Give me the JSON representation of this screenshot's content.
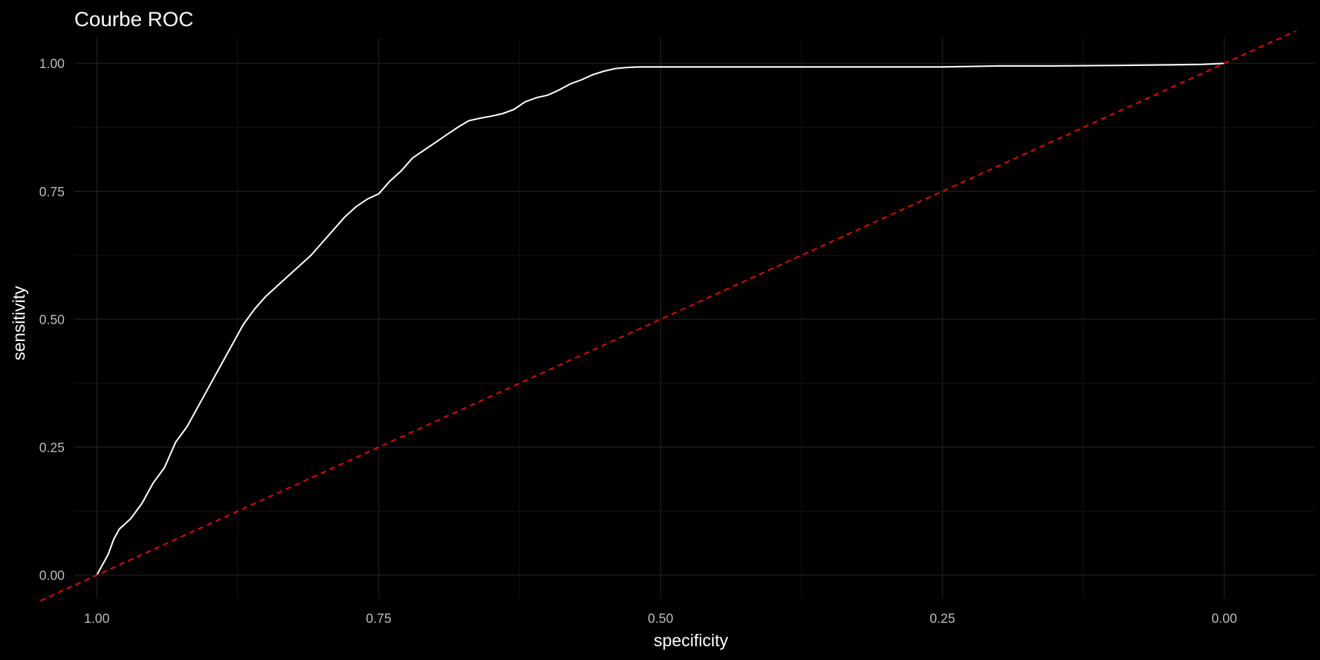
{
  "chart_data": {
    "type": "line",
    "title": "Courbe ROC",
    "xlabel": "specificity",
    "ylabel": "sensitivity",
    "x_reversed": true,
    "xlim": [
      1.02,
      -0.08
    ],
    "ylim": [
      -0.045,
      1.05
    ],
    "x_ticks": [
      1.0,
      0.75,
      0.5,
      0.25,
      0.0
    ],
    "x_tick_labels": [
      "1.00",
      "0.75",
      "0.50",
      "0.25",
      "0.00"
    ],
    "y_ticks": [
      0.0,
      0.25,
      0.5,
      0.75,
      1.0
    ],
    "y_tick_labels": [
      "0.00",
      "0.25",
      "0.50",
      "0.75",
      "1.00"
    ],
    "grid": true,
    "colors": {
      "background": "#000000",
      "grid_major": "#1f1f1f",
      "grid_minor": "#141414",
      "curve": "#ffffff",
      "reference": "#ff0000",
      "tick_text": "#bdbdbd",
      "title_text": "#ffffff"
    },
    "series": [
      {
        "style": "solid",
        "color": "#ffffff",
        "x": [
          1.0,
          0.995,
          0.99,
          0.985,
          0.98,
          0.975,
          0.97,
          0.96,
          0.95,
          0.94,
          0.93,
          0.92,
          0.91,
          0.9,
          0.89,
          0.88,
          0.87,
          0.86,
          0.85,
          0.84,
          0.83,
          0.82,
          0.81,
          0.8,
          0.79,
          0.78,
          0.77,
          0.76,
          0.75,
          0.74,
          0.73,
          0.72,
          0.71,
          0.7,
          0.69,
          0.68,
          0.67,
          0.66,
          0.65,
          0.64,
          0.63,
          0.62,
          0.61,
          0.6,
          0.59,
          0.58,
          0.57,
          0.56,
          0.55,
          0.54,
          0.53,
          0.52,
          0.5,
          0.45,
          0.4,
          0.35,
          0.3,
          0.25,
          0.2,
          0.15,
          0.1,
          0.05,
          0.02,
          0.0
        ],
        "y": [
          0.0,
          0.02,
          0.04,
          0.07,
          0.09,
          0.1,
          0.11,
          0.14,
          0.18,
          0.21,
          0.26,
          0.29,
          0.33,
          0.37,
          0.41,
          0.45,
          0.49,
          0.52,
          0.545,
          0.565,
          0.585,
          0.605,
          0.625,
          0.65,
          0.675,
          0.7,
          0.72,
          0.735,
          0.745,
          0.77,
          0.79,
          0.815,
          0.83,
          0.845,
          0.86,
          0.875,
          0.888,
          0.893,
          0.897,
          0.902,
          0.91,
          0.925,
          0.933,
          0.938,
          0.948,
          0.96,
          0.968,
          0.978,
          0.985,
          0.99,
          0.992,
          0.993,
          0.993,
          0.993,
          0.993,
          0.993,
          0.993,
          0.993,
          0.995,
          0.995,
          0.996,
          0.997,
          0.998,
          1.0
        ]
      },
      {
        "style": "dashed",
        "color": "#ff0000",
        "x": [
          1.05,
          -0.1
        ],
        "y": [
          -0.05,
          1.1
        ]
      }
    ]
  }
}
